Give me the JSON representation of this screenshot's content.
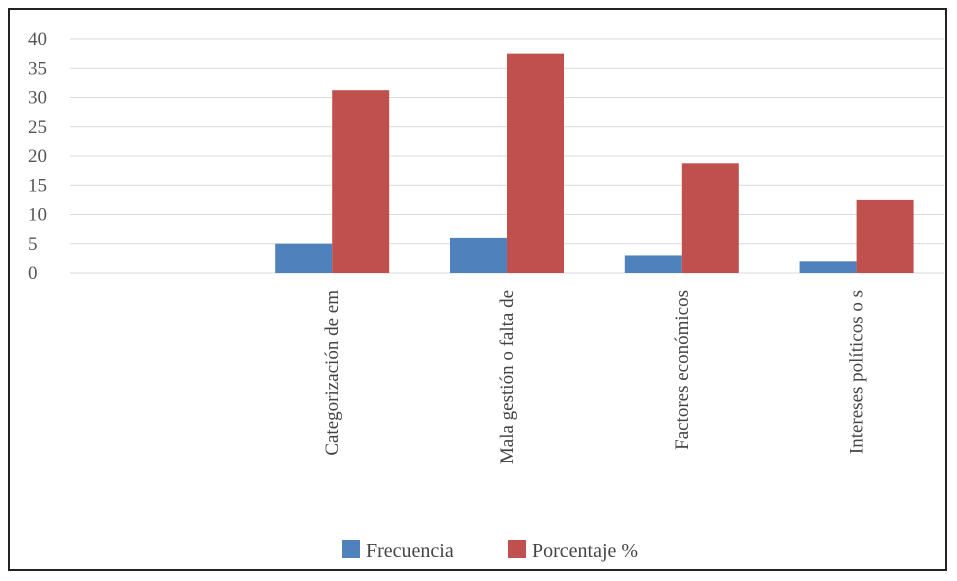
{
  "chart_data": {
    "type": "bar",
    "categories": [
      "",
      "Categorización de em",
      "Mala gestión o falta de",
      "Factores económicos",
      "Intereses políticos o s"
    ],
    "series": [
      {
        "name": "Frecuencia",
        "values": [
          0,
          5,
          6,
          3,
          2
        ],
        "color": "#4f81bd"
      },
      {
        "name": "Porcentaje %",
        "values": [
          0,
          31.25,
          37.5,
          18.75,
          12.5
        ],
        "color": "#c0504d"
      }
    ],
    "yticks": [
      "0",
      "5",
      "10",
      "15",
      "20",
      "25",
      "30",
      "35",
      "40"
    ],
    "ylim": [
      0,
      40
    ],
    "grid": true,
    "legend_position": "bottom"
  }
}
